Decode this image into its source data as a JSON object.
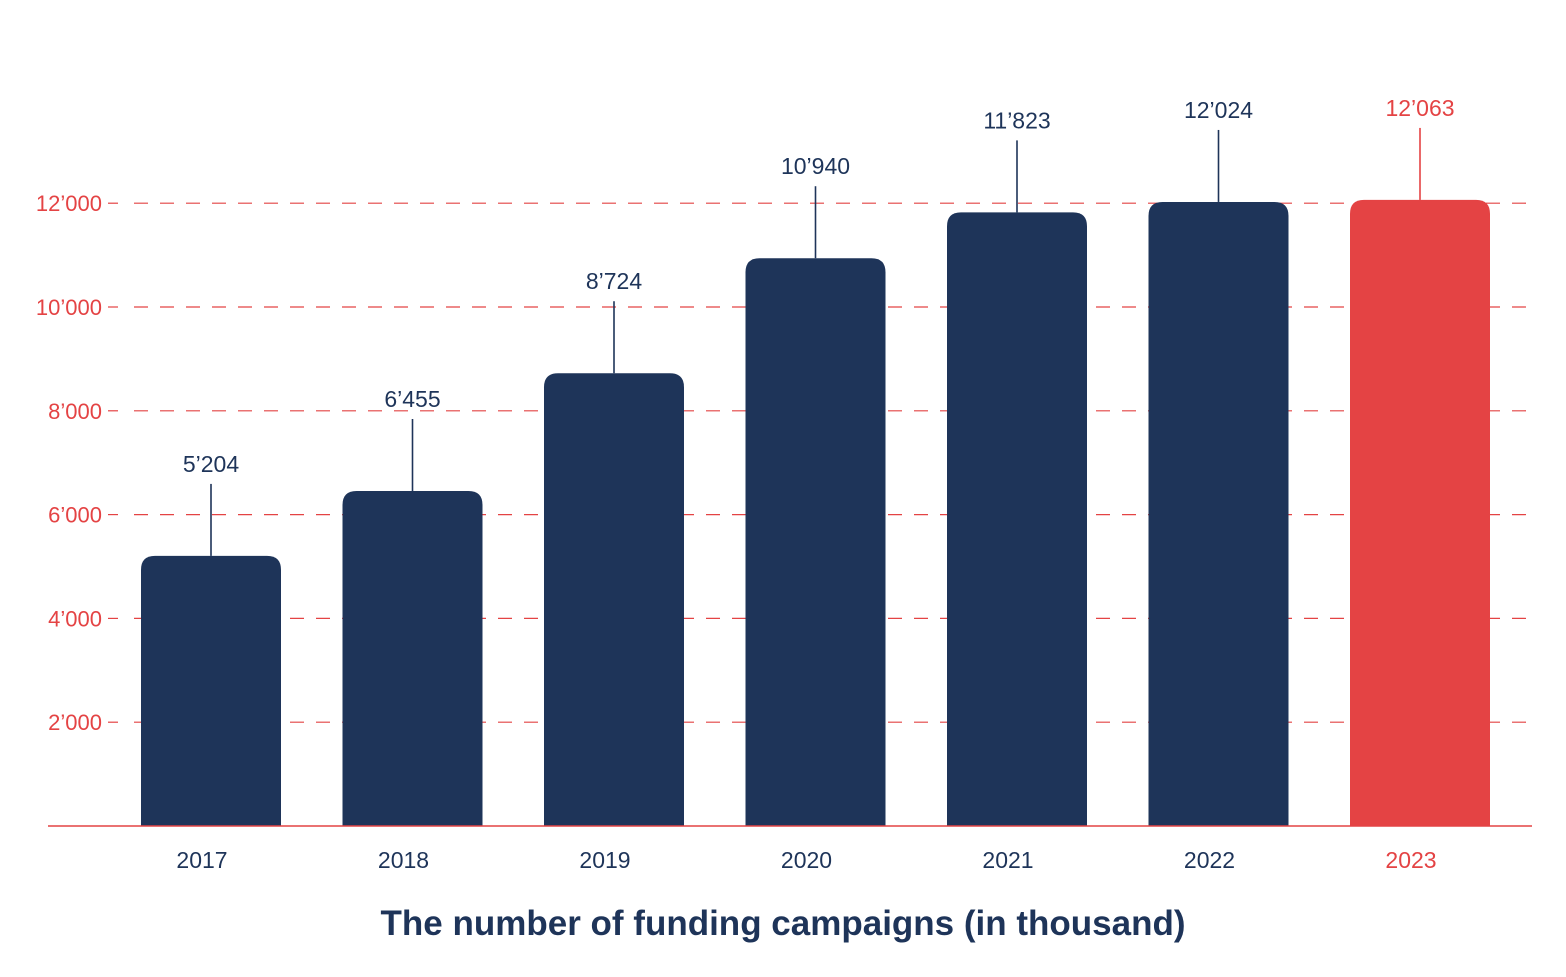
{
  "chart_data": {
    "type": "bar",
    "title": "",
    "xlabel": "The number of funding campaigns (in thousand)",
    "ylabel": "",
    "categories": [
      "2017",
      "2018",
      "2019",
      "2020",
      "2021",
      "2022",
      "2023"
    ],
    "values": [
      5204,
      6455,
      8724,
      10940,
      11823,
      12024,
      12063
    ],
    "value_labels": [
      "5’204",
      "6’455",
      "8’724",
      "10’940",
      "11’823",
      "12’024",
      "12’063"
    ],
    "y_ticks": [
      2000,
      4000,
      6000,
      8000,
      10000,
      12000
    ],
    "y_tick_labels": [
      "2’000",
      "4’000",
      "6’000",
      "8’000",
      "10’000",
      "12’000"
    ],
    "ylim": [
      0,
      14000
    ],
    "grid": true,
    "grid_style": "dashed",
    "legend": "none",
    "highlight_index": 6
  },
  "colors": {
    "bar": "#1e3459",
    "highlight": "#e44344",
    "axis": "#e44344",
    "grid": "#e44344",
    "tick_label": "#e44344",
    "text": "#1e3459"
  }
}
